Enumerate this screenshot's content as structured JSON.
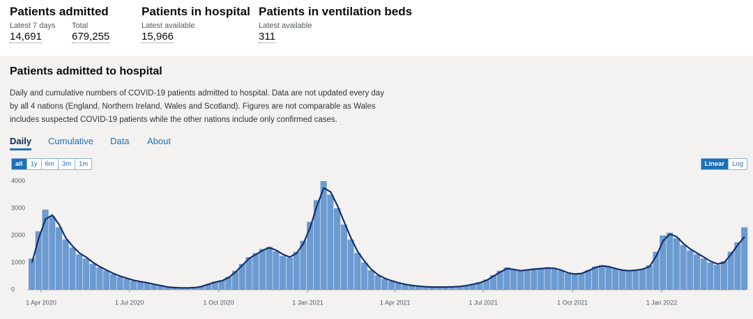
{
  "headline": [
    {
      "title": "Patients admitted",
      "metrics": [
        {
          "label": "Latest 7 days",
          "value": "14,691"
        },
        {
          "label": "Total",
          "value": "679,255"
        }
      ]
    },
    {
      "title": "Patients in hospital",
      "metrics": [
        {
          "label": "Latest available",
          "value": "15,966"
        }
      ]
    },
    {
      "title": "Patients in ventilation beds",
      "metrics": [
        {
          "label": "Latest available",
          "value": "311"
        }
      ]
    }
  ],
  "card": {
    "title": "Patients admitted to hospital",
    "description": "Daily and cumulative numbers of COVID-19 patients admitted to hospital. Data are not updated every day by all 4 nations (England, Northern Ireland, Wales and Scotland). Figures are not comparable as Wales includes suspected COVID-19 patients while the other nations include only confirmed cases.",
    "tabs": [
      "Daily",
      "Cumulative",
      "Data",
      "About"
    ],
    "active_tab": 0,
    "range_buttons": [
      "all",
      "1y",
      "6m",
      "3m",
      "1m"
    ],
    "active_range": 0,
    "scale_buttons": [
      "Linear",
      "Log"
    ],
    "active_scale": 0
  },
  "chart_data": {
    "type": "bar",
    "log_scale": false,
    "grid": false,
    "x": [
      "2020-03-19",
      "2020-03-26",
      "2020-04-02",
      "2020-04-09",
      "2020-04-16",
      "2020-04-23",
      "2020-04-30",
      "2020-05-07",
      "2020-05-14",
      "2020-05-21",
      "2020-05-28",
      "2020-06-04",
      "2020-06-11",
      "2020-06-18",
      "2020-06-25",
      "2020-07-02",
      "2020-07-09",
      "2020-07-16",
      "2020-07-23",
      "2020-07-30",
      "2020-08-06",
      "2020-08-13",
      "2020-08-20",
      "2020-08-27",
      "2020-09-03",
      "2020-09-10",
      "2020-09-17",
      "2020-09-24",
      "2020-10-01",
      "2020-10-08",
      "2020-10-15",
      "2020-10-22",
      "2020-10-29",
      "2020-11-05",
      "2020-11-12",
      "2020-11-19",
      "2020-11-26",
      "2020-12-03",
      "2020-12-10",
      "2020-12-17",
      "2020-12-24",
      "2020-12-31",
      "2021-01-07",
      "2021-01-14",
      "2021-01-21",
      "2021-01-28",
      "2021-02-04",
      "2021-02-11",
      "2021-02-18",
      "2021-02-25",
      "2021-03-04",
      "2021-03-11",
      "2021-03-18",
      "2021-03-25",
      "2021-04-01",
      "2021-04-08",
      "2021-04-15",
      "2021-04-22",
      "2021-04-29",
      "2021-05-06",
      "2021-05-13",
      "2021-05-20",
      "2021-05-27",
      "2021-06-03",
      "2021-06-10",
      "2021-06-17",
      "2021-06-24",
      "2021-07-01",
      "2021-07-08",
      "2021-07-15",
      "2021-07-22",
      "2021-07-29",
      "2021-08-05",
      "2021-08-12",
      "2021-08-19",
      "2021-08-26",
      "2021-09-02",
      "2021-09-09",
      "2021-09-16",
      "2021-09-23",
      "2021-09-30",
      "2021-10-07",
      "2021-10-14",
      "2021-10-21",
      "2021-10-28",
      "2021-11-04",
      "2021-11-11",
      "2021-11-18",
      "2021-11-25",
      "2021-12-02",
      "2021-12-09",
      "2021-12-16",
      "2021-12-23",
      "2021-12-30",
      "2022-01-06",
      "2022-01-13",
      "2022-01-20",
      "2022-01-27",
      "2022-02-03",
      "2022-02-10",
      "2022-02-17",
      "2022-02-24",
      "2022-03-03",
      "2022-03-10",
      "2022-03-17",
      "2022-03-24"
    ],
    "series": [
      {
        "type": "bar",
        "color": "#6c9bd2",
        "values": [
          1150,
          2150,
          2950,
          2700,
          2300,
          1850,
          1550,
          1300,
          1150,
          950,
          820,
          700,
          580,
          480,
          400,
          330,
          290,
          250,
          190,
          140,
          95,
          75,
          68,
          72,
          85,
          130,
          210,
          300,
          350,
          480,
          700,
          950,
          1200,
          1350,
          1500,
          1580,
          1420,
          1250,
          1180,
          1400,
          1800,
          2500,
          3300,
          4000,
          3500,
          3000,
          2400,
          1850,
          1350,
          1000,
          720,
          530,
          400,
          320,
          250,
          190,
          150,
          125,
          105,
          95,
          98,
          100,
          110,
          125,
          160,
          215,
          280,
          380,
          540,
          700,
          820,
          740,
          690,
          740,
          770,
          790,
          830,
          780,
          700,
          600,
          570,
          610,
          720,
          850,
          900,
          840,
          770,
          710,
          690,
          730,
          770,
          900,
          1400,
          2000,
          2100,
          1900,
          1650,
          1450,
          1300,
          1150,
          1000,
          920,
          1050,
          1400,
          1750,
          2300
        ]
      },
      {
        "type": "line",
        "color": "#12306b",
        "values": [
          1000,
          1900,
          2600,
          2750,
          2400,
          1900,
          1600,
          1350,
          1200,
          1000,
          850,
          720,
          600,
          500,
          420,
          350,
          300,
          260,
          200,
          150,
          100,
          80,
          70,
          70,
          80,
          120,
          200,
          280,
          330,
          450,
          650,
          900,
          1150,
          1300,
          1450,
          1550,
          1450,
          1300,
          1200,
          1350,
          1700,
          2300,
          3100,
          3750,
          3600,
          3100,
          2500,
          1900,
          1400,
          1050,
          750,
          550,
          420,
          330,
          260,
          200,
          160,
          130,
          110,
          100,
          100,
          100,
          105,
          120,
          150,
          200,
          260,
          350,
          500,
          650,
          780,
          750,
          700,
          730,
          760,
          780,
          800,
          790,
          720,
          620,
          580,
          600,
          700,
          820,
          880,
          850,
          780,
          720,
          700,
          720,
          760,
          850,
          1250,
          1800,
          2050,
          1950,
          1700,
          1500,
          1350,
          1200,
          1050,
          950,
          1000,
          1300,
          1650,
          1950
        ]
      }
    ],
    "xlim": [
      "2020-03-19",
      "2022-03-29"
    ],
    "xticks": [
      {
        "value": "2020-04-01",
        "label": "1 Apr 2020"
      },
      {
        "value": "2020-07-01",
        "label": "1 Jul 2020"
      },
      {
        "value": "2020-10-01",
        "label": "1 Oct 2020"
      },
      {
        "value": "2021-01-01",
        "label": "1 Jan 2021"
      },
      {
        "value": "2021-04-01",
        "label": "1 Apr 2021"
      },
      {
        "value": "2021-07-01",
        "label": "1 Jul 2021"
      },
      {
        "value": "2021-10-01",
        "label": "1 Oct 2021"
      },
      {
        "value": "2022-01-01",
        "label": "1 Jan 2022"
      }
    ],
    "ylim": [
      0,
      4200
    ],
    "yticks": [
      0,
      1000,
      2000,
      3000,
      4000
    ]
  }
}
